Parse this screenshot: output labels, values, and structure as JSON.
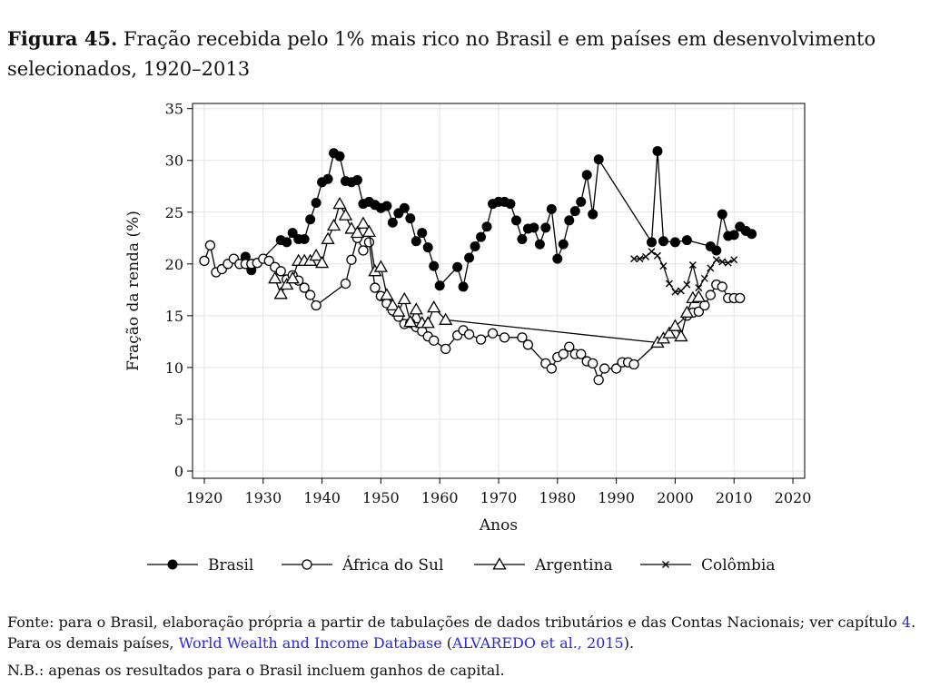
{
  "caption": {
    "label": "Figura 45.",
    "text": "Fração recebida pelo 1% mais rico no Brasil e em países em desenvolvimento selecionados, 1920–2013"
  },
  "source": {
    "prefix": "Fonte: para o Brasil, elaboração própria a partir de tabulações de dados tributários e das Contas Nacionais; ver capítulo ",
    "chapter_ref": "4",
    "middle": ". Para os demais países, ",
    "database_link": "World Wealth and Income Database",
    "paren_open": " (",
    "citation_link": "ALVAREDO et al., 2015",
    "paren_close": ")."
  },
  "note": "N.B.: apenas os resultados para o Brasil incluem ganhos de capital.",
  "chart_data": {
    "type": "line",
    "xlabel": "Anos",
    "ylabel": "Fração da renda (%)",
    "xlim": [
      1918,
      2022
    ],
    "ylim": [
      -0.7,
      35.5
    ],
    "xticks": [
      1920,
      1930,
      1940,
      1950,
      1960,
      1970,
      1980,
      1990,
      2000,
      2010,
      2020
    ],
    "yticks": [
      0,
      5,
      10,
      15,
      20,
      25,
      30,
      35
    ],
    "grid": true,
    "legend_position": "bottom",
    "series": [
      {
        "name": "Brasil",
        "marker": "filled-circle",
        "points": [
          [
            1927,
            20.7
          ],
          [
            1928,
            19.4
          ],
          [
            1933,
            22.3
          ],
          [
            1934,
            22.1
          ],
          [
            1935,
            23.0
          ],
          [
            1936,
            22.4
          ],
          [
            1937,
            22.4
          ],
          [
            1938,
            24.3
          ],
          [
            1939,
            25.9
          ],
          [
            1940,
            27.9
          ],
          [
            1941,
            28.2
          ],
          [
            1942,
            30.7
          ],
          [
            1943,
            30.4
          ],
          [
            1944,
            28.0
          ],
          [
            1945,
            27.9
          ],
          [
            1946,
            28.1
          ],
          [
            1947,
            25.8
          ],
          [
            1948,
            26.0
          ],
          [
            1949,
            25.7
          ],
          [
            1950,
            25.4
          ],
          [
            1951,
            25.6
          ],
          [
            1952,
            24.0
          ],
          [
            1953,
            24.9
          ],
          [
            1954,
            25.4
          ],
          [
            1955,
            24.4
          ],
          [
            1956,
            22.2
          ],
          [
            1957,
            23.0
          ],
          [
            1958,
            21.6
          ],
          [
            1959,
            19.8
          ],
          [
            1960,
            17.9
          ],
          [
            1963,
            19.7
          ],
          [
            1964,
            17.8
          ],
          [
            1965,
            20.6
          ],
          [
            1966,
            21.7
          ],
          [
            1967,
            22.6
          ],
          [
            1968,
            23.6
          ],
          [
            1969,
            25.8
          ],
          [
            1970,
            26.0
          ],
          [
            1971,
            26.0
          ],
          [
            1972,
            25.8
          ],
          [
            1973,
            24.2
          ],
          [
            1974,
            22.4
          ],
          [
            1975,
            23.4
          ],
          [
            1976,
            23.5
          ],
          [
            1977,
            21.9
          ],
          [
            1978,
            23.5
          ],
          [
            1979,
            25.3
          ],
          [
            1980,
            20.5
          ],
          [
            1981,
            21.9
          ],
          [
            1982,
            24.2
          ],
          [
            1983,
            25.1
          ],
          [
            1984,
            26.0
          ],
          [
            1985,
            28.6
          ],
          [
            1986,
            24.8
          ],
          [
            1987,
            30.1
          ],
          [
            1996,
            22.1
          ],
          [
            1997,
            30.9
          ],
          [
            1998,
            22.2
          ],
          [
            2000,
            22.1
          ],
          [
            2002,
            22.3
          ],
          [
            2006,
            21.7
          ],
          [
            2007,
            21.3
          ],
          [
            2008,
            24.8
          ],
          [
            2009,
            22.7
          ],
          [
            2010,
            22.8
          ],
          [
            2011,
            23.6
          ],
          [
            2012,
            23.2
          ],
          [
            2013,
            22.9
          ]
        ]
      },
      {
        "name": "África do Sul",
        "marker": "hollow-circle",
        "points": [
          [
            1920,
            20.3
          ],
          [
            1921,
            21.8
          ],
          [
            1922,
            19.2
          ],
          [
            1923,
            19.5
          ],
          [
            1924,
            20.0
          ],
          [
            1925,
            20.5
          ],
          [
            1926,
            20.0
          ],
          [
            1927,
            20.0
          ],
          [
            1928,
            20.0
          ],
          [
            1929,
            20.1
          ],
          [
            1930,
            20.5
          ],
          [
            1931,
            20.3
          ],
          [
            1932,
            19.7
          ],
          [
            1933,
            19.3
          ],
          [
            1934,
            18.5
          ],
          [
            1935,
            18.9
          ],
          [
            1936,
            18.4
          ],
          [
            1937,
            17.7
          ],
          [
            1938,
            17.0
          ],
          [
            1939,
            16.0
          ],
          [
            1944,
            18.1
          ],
          [
            1945,
            20.4
          ],
          [
            1946,
            22.5
          ],
          [
            1947,
            21.3
          ],
          [
            1948,
            22.1
          ],
          [
            1949,
            17.7
          ],
          [
            1950,
            16.9
          ],
          [
            1951,
            16.2
          ],
          [
            1952,
            15.5
          ],
          [
            1953,
            14.9
          ],
          [
            1954,
            14.2
          ],
          [
            1955,
            14.3
          ],
          [
            1956,
            13.9
          ],
          [
            1957,
            13.5
          ],
          [
            1958,
            13.0
          ],
          [
            1959,
            12.6
          ],
          [
            1961,
            11.8
          ],
          [
            1963,
            13.1
          ],
          [
            1964,
            13.6
          ],
          [
            1965,
            13.2
          ],
          [
            1967,
            12.7
          ],
          [
            1969,
            13.3
          ],
          [
            1971,
            12.9
          ],
          [
            1974,
            12.9
          ],
          [
            1975,
            12.2
          ],
          [
            1978,
            10.4
          ],
          [
            1979,
            9.9
          ],
          [
            1980,
            11.0
          ],
          [
            1981,
            11.3
          ],
          [
            1982,
            12.0
          ],
          [
            1983,
            11.3
          ],
          [
            1984,
            11.3
          ],
          [
            1985,
            10.6
          ],
          [
            1986,
            10.4
          ],
          [
            1987,
            8.8
          ],
          [
            1988,
            9.9
          ],
          [
            1990,
            9.9
          ],
          [
            1991,
            10.5
          ],
          [
            1992,
            10.5
          ],
          [
            1993,
            10.3
          ],
          [
            2002,
            15.0
          ],
          [
            2003,
            15.3
          ],
          [
            2004,
            15.4
          ],
          [
            2005,
            16.0
          ],
          [
            2006,
            17.0
          ],
          [
            2007,
            18.0
          ],
          [
            2008,
            17.8
          ],
          [
            2009,
            16.7
          ],
          [
            2010,
            16.7
          ],
          [
            2011,
            16.7
          ]
        ]
      },
      {
        "name": "Argentina",
        "marker": "hollow-triangle",
        "points": [
          [
            1932,
            18.6
          ],
          [
            1933,
            17.1
          ],
          [
            1934,
            18.0
          ],
          [
            1935,
            18.6
          ],
          [
            1936,
            20.3
          ],
          [
            1937,
            20.3
          ],
          [
            1938,
            20.3
          ],
          [
            1939,
            20.8
          ],
          [
            1940,
            20.1
          ],
          [
            1941,
            22.4
          ],
          [
            1942,
            23.7
          ],
          [
            1943,
            25.8
          ],
          [
            1944,
            24.7
          ],
          [
            1945,
            23.4
          ],
          [
            1946,
            23.0
          ],
          [
            1947,
            23.9
          ],
          [
            1948,
            23.1
          ],
          [
            1949,
            19.3
          ],
          [
            1950,
            19.7
          ],
          [
            1951,
            17.0
          ],
          [
            1952,
            16.0
          ],
          [
            1953,
            15.4
          ],
          [
            1954,
            16.6
          ],
          [
            1955,
            14.4
          ],
          [
            1956,
            15.6
          ],
          [
            1957,
            14.3
          ],
          [
            1958,
            14.3
          ],
          [
            1959,
            15.8
          ],
          [
            1961,
            14.6
          ],
          [
            1997,
            12.4
          ],
          [
            1998,
            12.8
          ],
          [
            1999,
            13.3
          ],
          [
            2000,
            14.0
          ],
          [
            2001,
            13.0
          ],
          [
            2002,
            15.3
          ],
          [
            2003,
            16.7
          ],
          [
            2004,
            16.8
          ]
        ]
      },
      {
        "name": "Colômbia",
        "marker": "cross",
        "points": [
          [
            1993,
            20.5
          ],
          [
            1994,
            20.5
          ],
          [
            1995,
            20.7
          ],
          [
            1996,
            21.2
          ],
          [
            1997,
            20.8
          ],
          [
            1998,
            19.8
          ],
          [
            1999,
            18.1
          ],
          [
            2000,
            17.3
          ],
          [
            2001,
            17.4
          ],
          [
            2002,
            18.0
          ],
          [
            2003,
            19.9
          ],
          [
            2004,
            17.7
          ],
          [
            2005,
            18.6
          ],
          [
            2006,
            19.6
          ],
          [
            2007,
            20.4
          ],
          [
            2008,
            20.2
          ],
          [
            2009,
            20.1
          ],
          [
            2010,
            20.4
          ]
        ]
      }
    ]
  }
}
